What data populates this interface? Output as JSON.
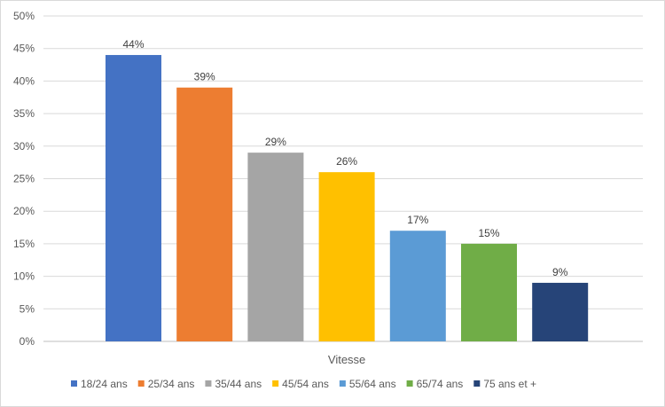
{
  "chart_data": {
    "type": "bar",
    "categories": [
      "Vitesse"
    ],
    "series": [
      {
        "name": "18/24 ans",
        "values": [
          44
        ],
        "label": "44%",
        "color": "#4472c4"
      },
      {
        "name": "25/34 ans",
        "values": [
          39
        ],
        "label": "39%",
        "color": "#ed7d31"
      },
      {
        "name": "35/44 ans",
        "values": [
          29
        ],
        "label": "29%",
        "color": "#a5a5a5"
      },
      {
        "name": "45/54 ans",
        "values": [
          26
        ],
        "label": "26%",
        "color": "#ffc000"
      },
      {
        "name": "55/64 ans",
        "values": [
          17
        ],
        "label": "17%",
        "color": "#5b9bd5"
      },
      {
        "name": "65/74 ans",
        "values": [
          15
        ],
        "label": "15%",
        "color": "#70ad47"
      },
      {
        "name": "75 ans et +",
        "values": [
          9
        ],
        "label": "9%",
        "color": "#264478"
      }
    ],
    "yticks": [
      "0%",
      "5%",
      "10%",
      "15%",
      "20%",
      "25%",
      "30%",
      "35%",
      "40%",
      "45%",
      "50%"
    ],
    "ylim": [
      0,
      50
    ],
    "y_unit": "%",
    "grid": true,
    "legend_position": "bottom",
    "title": "",
    "xlabel": "",
    "ylabel": ""
  }
}
